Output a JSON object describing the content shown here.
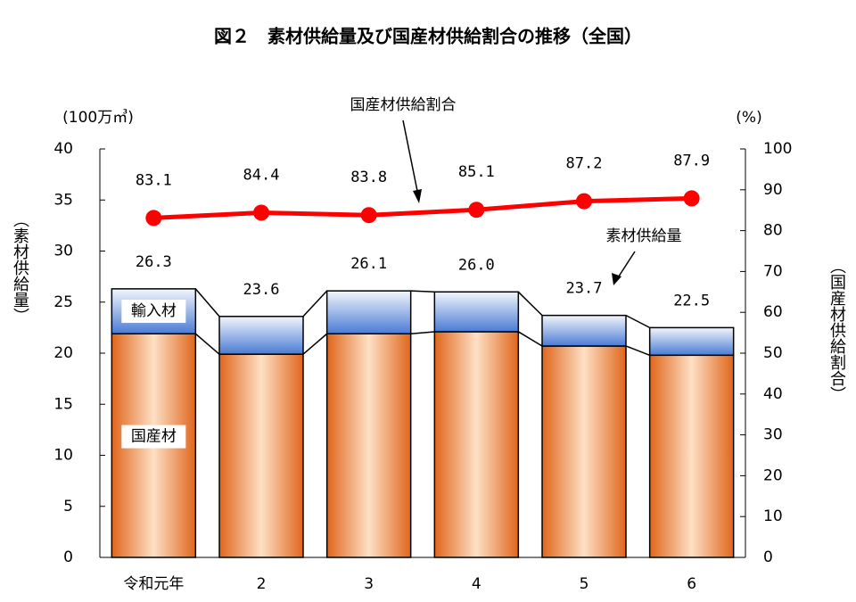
{
  "chart_data": {
    "type": "stacked-bar-line",
    "title": "図２　素材供給量及び国産材供給割合の推移（全国）",
    "categories": [
      "令和元年",
      "2",
      "3",
      "4",
      "5",
      "6"
    ],
    "series": [
      {
        "name": "国産材",
        "color": "#e8782c",
        "values": [
          21.9,
          19.9,
          21.9,
          22.1,
          20.7,
          19.8
        ]
      },
      {
        "name": "輸入材",
        "color": "#4f7fd6",
        "values": [
          4.4,
          3.7,
          4.2,
          3.9,
          3.0,
          2.7
        ]
      },
      {
        "name": "国産材供給割合",
        "color": "#ff0000",
        "axis": "y2",
        "values": [
          83.1,
          84.4,
          83.8,
          85.1,
          87.2,
          87.9
        ]
      }
    ],
    "totals": {
      "name": "素材供給量",
      "values": [
        26.3,
        23.6,
        26.1,
        26.0,
        23.7,
        22.5
      ],
      "value_labels": [
        "26.3",
        "23.6",
        "26.1",
        "26.0",
        "23.7",
        "22.5"
      ]
    },
    "ylabel": "（素材供給量）",
    "yunit": "(100万㎥)",
    "y2label": "（国産材供給割合）",
    "y2unit": "(%)",
    "ylim": [
      0,
      40
    ],
    "yticks": [
      0,
      5,
      10,
      15,
      20,
      25,
      30,
      35,
      40
    ],
    "y2lim": [
      0,
      100
    ],
    "y2ticks": [
      0,
      10,
      20,
      30,
      40,
      50,
      60,
      70,
      80,
      90,
      100
    ]
  }
}
